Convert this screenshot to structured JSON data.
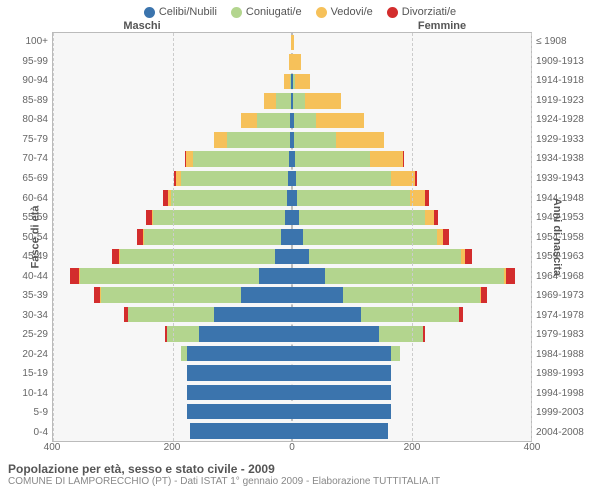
{
  "legend": [
    {
      "label": "Celibi/Nubili",
      "color": "#3b74ad"
    },
    {
      "label": "Coniugati/e",
      "color": "#b3d58e"
    },
    {
      "label": "Vedovi/e",
      "color": "#f6c15a"
    },
    {
      "label": "Divorziati/e",
      "color": "#d32d2d"
    }
  ],
  "gender": {
    "male": "Maschi",
    "female": "Femmine"
  },
  "axis": {
    "left_label": "Fasce di età",
    "right_label": "Anni di nascita",
    "x_ticks": [
      -400,
      -200,
      0,
      200,
      400
    ],
    "x_max": 400
  },
  "age_groups": [
    {
      "age": "100+",
      "birth": "≤ 1908",
      "m": [
        0,
        0,
        2,
        0
      ],
      "f": [
        0,
        0,
        3,
        0
      ]
    },
    {
      "age": "95-99",
      "birth": "1909-1913",
      "m": [
        0,
        0,
        5,
        0
      ],
      "f": [
        0,
        0,
        15,
        0
      ]
    },
    {
      "age": "90-94",
      "birth": "1914-1918",
      "m": [
        1,
        3,
        10,
        0
      ],
      "f": [
        1,
        4,
        25,
        0
      ]
    },
    {
      "age": "85-89",
      "birth": "1919-1923",
      "m": [
        2,
        25,
        20,
        0
      ],
      "f": [
        2,
        20,
        60,
        0
      ]
    },
    {
      "age": "80-84",
      "birth": "1924-1928",
      "m": [
        3,
        55,
        28,
        0
      ],
      "f": [
        3,
        38,
        80,
        0
      ]
    },
    {
      "age": "75-79",
      "birth": "1929-1933",
      "m": [
        4,
        105,
        22,
        0
      ],
      "f": [
        4,
        70,
        80,
        0
      ]
    },
    {
      "age": "70-74",
      "birth": "1934-1938",
      "m": [
        5,
        160,
        12,
        2
      ],
      "f": [
        5,
        125,
        55,
        2
      ]
    },
    {
      "age": "65-69",
      "birth": "1939-1943",
      "m": [
        6,
        180,
        8,
        4
      ],
      "f": [
        6,
        160,
        40,
        4
      ]
    },
    {
      "age": "60-64",
      "birth": "1944-1948",
      "m": [
        8,
        195,
        5,
        8
      ],
      "f": [
        8,
        190,
        25,
        6
      ]
    },
    {
      "age": "55-59",
      "birth": "1949-1953",
      "m": [
        12,
        220,
        3,
        10
      ],
      "f": [
        12,
        210,
        15,
        8
      ]
    },
    {
      "age": "50-54",
      "birth": "1954-1958",
      "m": [
        18,
        230,
        2,
        10
      ],
      "f": [
        18,
        225,
        10,
        10
      ]
    },
    {
      "age": "45-49",
      "birth": "1959-1963",
      "m": [
        28,
        260,
        2,
        12
      ],
      "f": [
        28,
        255,
        6,
        12
      ]
    },
    {
      "age": "40-44",
      "birth": "1964-1968",
      "m": [
        55,
        300,
        2,
        15
      ],
      "f": [
        55,
        300,
        4,
        15
      ]
    },
    {
      "age": "35-39",
      "birth": "1969-1973",
      "m": [
        85,
        235,
        1,
        10
      ],
      "f": [
        85,
        230,
        2,
        10
      ]
    },
    {
      "age": "30-34",
      "birth": "1974-1978",
      "m": [
        130,
        145,
        0,
        6
      ],
      "f": [
        115,
        165,
        0,
        6
      ]
    },
    {
      "age": "25-29",
      "birth": "1979-1983",
      "m": [
        155,
        55,
        0,
        2
      ],
      "f": [
        145,
        75,
        0,
        2
      ]
    },
    {
      "age": "20-24",
      "birth": "1984-1988",
      "m": [
        175,
        10,
        0,
        0
      ],
      "f": [
        165,
        15,
        0,
        0
      ]
    },
    {
      "age": "15-19",
      "birth": "1989-1993",
      "m": [
        175,
        0,
        0,
        0
      ],
      "f": [
        165,
        0,
        0,
        0
      ]
    },
    {
      "age": "10-14",
      "birth": "1994-1998",
      "m": [
        175,
        0,
        0,
        0
      ],
      "f": [
        165,
        0,
        0,
        0
      ]
    },
    {
      "age": "5-9",
      "birth": "1999-2003",
      "m": [
        175,
        0,
        0,
        0
      ],
      "f": [
        165,
        0,
        0,
        0
      ]
    },
    {
      "age": "0-4",
      "birth": "2004-2008",
      "m": [
        170,
        0,
        0,
        0
      ],
      "f": [
        160,
        0,
        0,
        0
      ]
    }
  ],
  "footer": {
    "title": "Popolazione per età, sesso e stato civile - 2009",
    "subtitle": "COMUNE DI LAMPORECCHIO (PT) - Dati ISTAT 1° gennaio 2009 - Elaborazione TUTTITALIA.IT"
  },
  "style": {
    "plot_bg": "#f7f7f7",
    "grid_color": "#cccccc",
    "border_color": "#bbbbbb",
    "text_color": "#555555"
  }
}
